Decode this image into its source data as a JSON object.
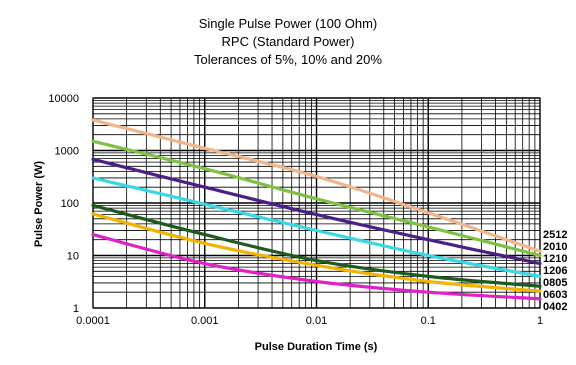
{
  "chart_data": {
    "type": "line",
    "title_lines": [
      "Single Pulse Power (100 Ohm)",
      "RPC (Standard Power)",
      "Tolerances of 5%, 10% and 20%"
    ],
    "xlabel": "Pulse Duration Time (s)",
    "ylabel": "Pulse Power (W)",
    "x_scale": "log",
    "y_scale": "log",
    "xlim": [
      0.0001,
      1
    ],
    "ylim": [
      1,
      10000
    ],
    "x_ticks": [
      "0.0001",
      "0.001",
      "0.01",
      "0.1",
      "1"
    ],
    "y_ticks": [
      "1",
      "10",
      "100",
      "1000",
      "10000"
    ],
    "grid": true,
    "series": [
      {
        "name": "2512",
        "color": "#f2b48a",
        "x": [
          0.0001,
          0.001,
          0.01,
          0.1,
          1
        ],
        "y": [
          3800,
          1100,
          320,
          65,
          12
        ]
      },
      {
        "name": "2010",
        "color": "#7fc241",
        "x": [
          0.0001,
          0.001,
          0.01,
          0.1,
          1
        ],
        "y": [
          1500,
          450,
          120,
          35,
          10
        ]
      },
      {
        "name": "1210",
        "color": "#4b1f8a",
        "x": [
          0.0001,
          0.001,
          0.01,
          0.1,
          1
        ],
        "y": [
          680,
          200,
          60,
          20,
          7
        ]
      },
      {
        "name": "1206",
        "color": "#38d8e8",
        "x": [
          0.0001,
          0.001,
          0.01,
          0.1,
          1
        ],
        "y": [
          300,
          95,
          30,
          10,
          4
        ]
      },
      {
        "name": "0805",
        "color": "#1d5a1d",
        "x": [
          0.0001,
          0.001,
          0.01,
          0.1,
          1
        ],
        "y": [
          90,
          25,
          8,
          4,
          2.6
        ]
      },
      {
        "name": "0603",
        "color": "#f2b400",
        "x": [
          0.0001,
          0.001,
          0.01,
          0.1,
          1
        ],
        "y": [
          62,
          17,
          6.5,
          3.2,
          2.1
        ]
      },
      {
        "name": "0402",
        "color": "#e020c8",
        "x": [
          0.0001,
          0.001,
          0.01,
          0.1,
          1
        ],
        "y": [
          25,
          7,
          3.2,
          2,
          1.5
        ]
      }
    ]
  }
}
